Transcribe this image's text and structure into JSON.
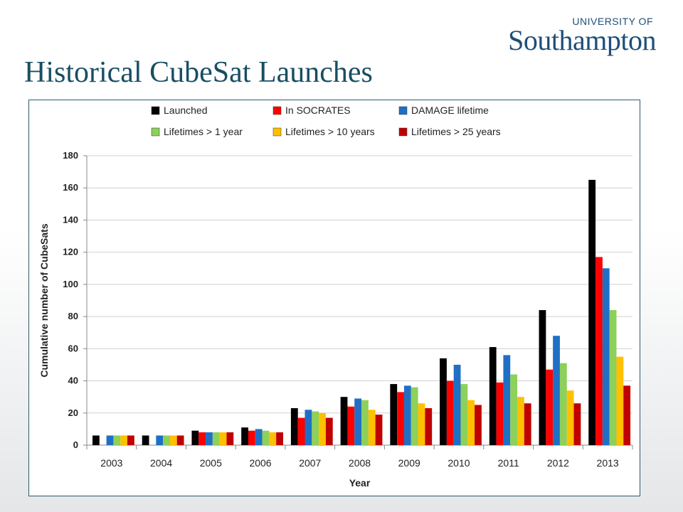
{
  "header": {
    "logo_top": "UNIVERSITY OF",
    "logo_main": "Southampton",
    "title": "Historical CubeSat Launches"
  },
  "chart_data": {
    "type": "bar",
    "categories": [
      "2003",
      "2004",
      "2005",
      "2006",
      "2007",
      "2008",
      "2009",
      "2010",
      "2011",
      "2012",
      "2013"
    ],
    "xlabel": "Year",
    "ylabel": "Cumulative number of CubeSats",
    "ylim": [
      0,
      180
    ],
    "yticks": [
      0,
      20,
      40,
      60,
      80,
      100,
      120,
      140,
      160,
      180
    ],
    "grid": true,
    "legend_position": "top",
    "series": [
      {
        "name": "Launched",
        "color": "#000000",
        "values": [
          6,
          6,
          9,
          11,
          23,
          30,
          38,
          54,
          61,
          84,
          165
        ]
      },
      {
        "name": "In SOCRATES",
        "color": "#ff0000",
        "values": [
          0,
          0,
          8,
          9,
          17,
          24,
          33,
          40,
          39,
          47,
          117
        ]
      },
      {
        "name": "DAMAGE lifetime",
        "color": "#1f6fc5",
        "values": [
          6,
          6,
          8,
          10,
          22,
          29,
          37,
          50,
          56,
          68,
          110
        ]
      },
      {
        "name": "Lifetimes > 1 year",
        "color": "#8dd05a",
        "values": [
          6,
          6,
          8,
          9,
          21,
          28,
          36,
          38,
          44,
          51,
          84
        ]
      },
      {
        "name": "Lifetimes > 10 years",
        "color": "#ffc000",
        "values": [
          6,
          6,
          8,
          8,
          20,
          22,
          26,
          28,
          30,
          34,
          55
        ]
      },
      {
        "name": "Lifetimes > 25 years",
        "color": "#c00000",
        "values": [
          6,
          6,
          8,
          8,
          17,
          19,
          23,
          25,
          26,
          26,
          37
        ]
      }
    ]
  }
}
